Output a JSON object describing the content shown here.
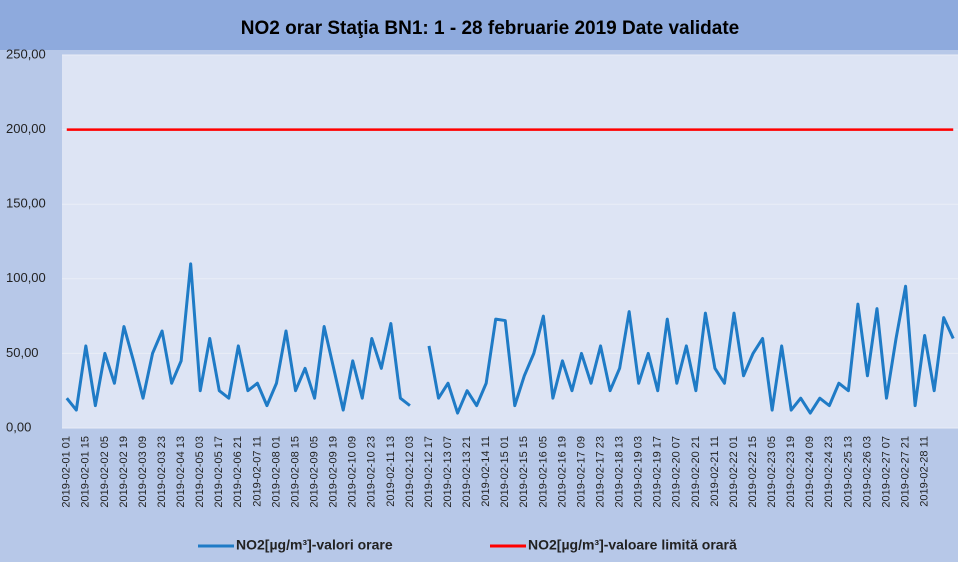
{
  "chart_data": {
    "type": "line",
    "title": "NO2 orar Staţia BN1: 1 - 28 februarie 2019 Date validate",
    "categories": [
      "2019-02-01 01",
      null,
      "2019-02-01 15",
      null,
      "2019-02-02 05",
      null,
      "2019-02-02 19",
      null,
      "2019-02-03 09",
      null,
      "2019-02-03 23",
      null,
      "2019-02-04 13",
      null,
      "2019-02-05 03",
      null,
      "2019-02-05 17",
      null,
      "2019-02-06 21",
      null,
      "2019-02-07 11",
      null,
      "2019-02-08 01",
      null,
      "2019-02-08 15",
      null,
      "2019-02-09 05",
      null,
      "2019-02-09 19",
      null,
      "2019-02-10 09",
      null,
      "2019-02-10 23",
      null,
      "2019-02-11 13",
      null,
      "2019-02-12 03",
      null,
      "2019-02-12 17",
      null,
      "2019-02-13 07",
      null,
      "2019-02-13 21",
      null,
      "2019-02-14 11",
      null,
      "2019-02-15 01",
      null,
      "2019-02-15 15",
      null,
      "2019-02-16 05",
      null,
      "2019-02-16 19",
      null,
      "2019-02-17 09",
      null,
      "2019-02-17 23",
      null,
      "2019-02-18 13",
      null,
      "2019-02-19 03",
      null,
      "2019-02-19 17",
      null,
      "2019-02-20 07",
      null,
      "2019-02-20 21",
      null,
      "2019-02-21 11",
      null,
      "2019-02-22 01",
      null,
      "2019-02-22 15",
      null,
      "2019-02-23 05",
      null,
      "2019-02-23 19",
      null,
      "2019-02-24 09",
      null,
      "2019-02-24 23",
      null,
      "2019-02-25 13",
      null,
      "2019-02-26 03",
      null,
      "2019-02-27 07",
      null,
      "2019-02-27 21",
      null,
      "2019-02-28 11",
      null,
      null,
      null
    ],
    "series": [
      {
        "name": "NO2[µg/m³]-valori orare",
        "color": "#1f7bc6",
        "values": [
          20,
          12,
          55,
          15,
          50,
          30,
          68,
          45,
          20,
          50,
          65,
          30,
          45,
          110,
          25,
          60,
          25,
          20,
          55,
          25,
          30,
          15,
          30,
          65,
          25,
          40,
          20,
          68,
          40,
          12,
          45,
          20,
          60,
          40,
          70,
          20,
          15,
          null,
          55,
          20,
          30,
          10,
          25,
          15,
          30,
          73,
          72,
          15,
          35,
          50,
          75,
          20,
          45,
          25,
          50,
          30,
          55,
          25,
          40,
          78,
          30,
          50,
          25,
          73,
          30,
          55,
          25,
          77,
          40,
          30,
          77,
          35,
          50,
          60,
          12,
          55,
          12,
          20,
          10,
          20,
          15,
          30,
          25,
          83,
          35,
          80,
          20,
          60,
          95,
          15,
          62,
          25,
          74,
          60
        ]
      },
      {
        "name": "NO2[µg/m³]-valoare limită orară",
        "color": "#ff0000",
        "values": [
          200,
          200,
          200,
          200,
          200,
          200,
          200,
          200,
          200,
          200,
          200,
          200,
          200,
          200,
          200,
          200,
          200,
          200,
          200,
          200,
          200,
          200,
          200,
          200,
          200,
          200,
          200,
          200,
          200,
          200,
          200,
          200,
          200,
          200,
          200,
          200,
          200,
          200,
          200,
          200,
          200,
          200,
          200,
          200,
          200,
          200,
          200,
          200,
          200,
          200,
          200,
          200,
          200,
          200,
          200,
          200,
          200,
          200,
          200,
          200,
          200,
          200,
          200,
          200,
          200,
          200,
          200,
          200,
          200,
          200,
          200,
          200,
          200,
          200,
          200,
          200,
          200,
          200,
          200,
          200,
          200,
          200,
          200,
          200,
          200,
          200,
          200,
          200,
          200,
          200,
          200,
          200,
          200,
          200
        ]
      }
    ],
    "ylim": [
      0,
      250
    ],
    "yticks": [
      {
        "value": 0,
        "label": "0,00"
      },
      {
        "value": 50,
        "label": "50,00"
      },
      {
        "value": 100,
        "label": "100,00"
      },
      {
        "value": 150,
        "label": "150,00"
      },
      {
        "value": 200,
        "label": "200,00"
      },
      {
        "value": 250,
        "label": "250,00"
      }
    ],
    "grid": true
  }
}
